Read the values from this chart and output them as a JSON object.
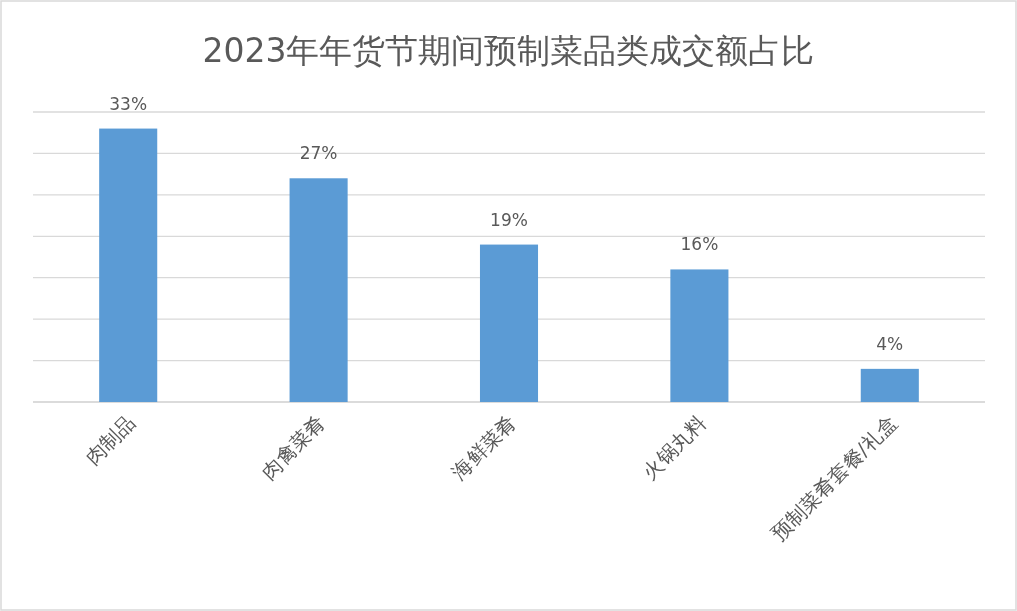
{
  "chart_data": {
    "type": "bar",
    "title": "2023年年货节期间预制菜品类成交额占比",
    "categories": [
      "肉制品",
      "肉禽菜肴",
      "海鲜菜肴",
      "火锅丸料",
      "预制菜肴套餐/礼盒"
    ],
    "values": [
      33,
      27,
      19,
      16,
      4
    ],
    "value_labels": [
      "33%",
      "27%",
      "19%",
      "16%",
      "4%"
    ],
    "color": "#5b9bd5",
    "ylim": [
      0,
      35
    ],
    "yticks": [
      {
        "value": 0,
        "label": null
      },
      {
        "value": 5,
        "label": null
      },
      {
        "value": 10,
        "label": null
      },
      {
        "value": 15,
        "label": null
      },
      {
        "value": 20,
        "label": null
      },
      {
        "value": 25,
        "label": null
      },
      {
        "value": 30,
        "label": null
      },
      {
        "value": 35,
        "label": null
      }
    ],
    "tick_labels": "x",
    "grid": "y"
  }
}
